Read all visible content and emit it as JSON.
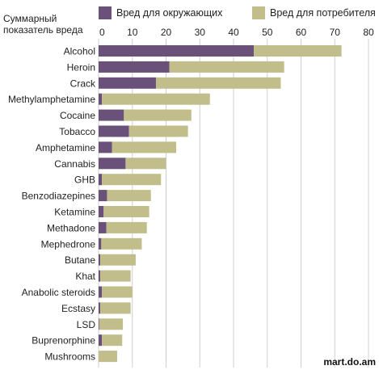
{
  "chart_data": {
    "type": "bar",
    "orientation": "horizontal",
    "stacked": true,
    "title": "Суммарный показатель вреда",
    "xlim": [
      0,
      80
    ],
    "x_ticks": [
      "0",
      "10",
      "20",
      "30",
      "40",
      "50",
      "60",
      "70",
      "80"
    ],
    "grid": true,
    "legend_position": "top",
    "categories": [
      "Alcohol",
      "Heroin",
      "Crack",
      "Methylamphetamine",
      "Cocaine",
      "Tobacco",
      "Amphetamine",
      "Cannabis",
      "GHB",
      "Benzodiazepines",
      "Ketamine",
      "Methadone",
      "Mephedrone",
      "Butane",
      "Khat",
      "Anabolic steroids",
      "Ecstasy",
      "LSD",
      "Buprenorphine",
      "Mushrooms"
    ],
    "series": [
      {
        "name": "Вред для окружающих",
        "color": "#6a5179",
        "values": [
          46,
          21,
          17,
          1,
          7.5,
          9,
          4,
          8,
          1,
          2.5,
          1.5,
          2.3,
          0.8,
          0.5,
          0.5,
          1,
          0.5,
          0.2,
          1,
          0
        ]
      },
      {
        "name": "Вред для потребителя",
        "color": "#c1be8c",
        "values": [
          26,
          34,
          37,
          32,
          20,
          17.5,
          19,
          12,
          17.5,
          13,
          13.5,
          12,
          12,
          10.5,
          9,
          9,
          9,
          7,
          6,
          5.5
        ]
      }
    ]
  },
  "watermark": "mart.do.am"
}
